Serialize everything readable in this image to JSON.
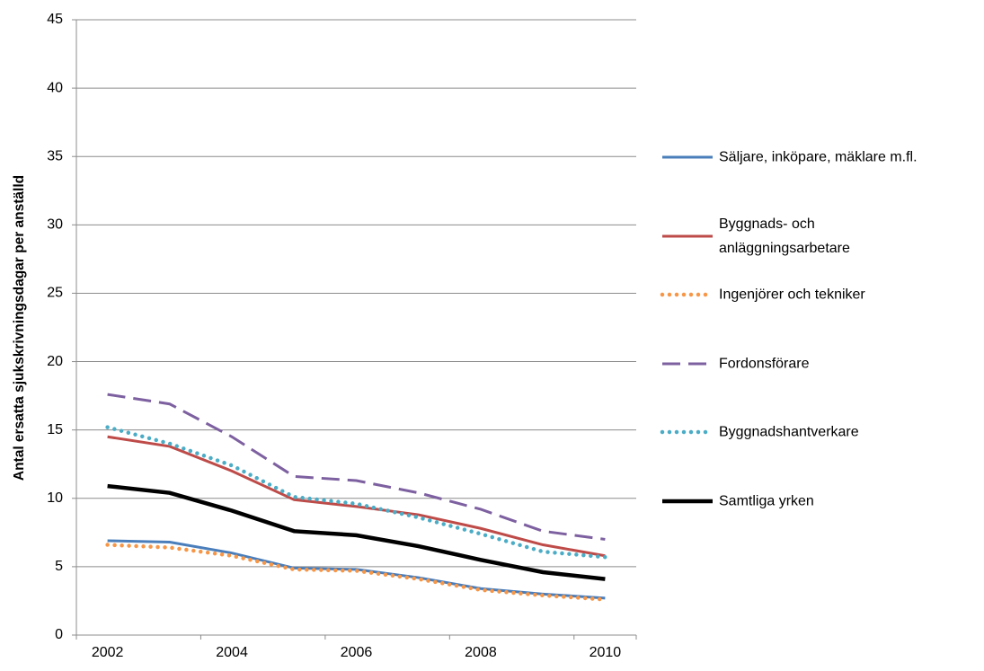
{
  "chart_data": {
    "type": "line",
    "y_label": "Antal ersatta sjukskrivningsdagar per anställd",
    "categories": [
      "2002",
      null,
      "2004",
      null,
      "2006",
      null,
      "2008",
      null,
      "2010"
    ],
    "series": [
      {
        "name": "Säljare, inköpare, mäklare m.fl.",
        "color": "#4a7ebb",
        "style": "solid",
        "values": [
          6.9,
          6.8,
          6.0,
          4.9,
          4.8,
          4.2,
          3.4,
          3.0,
          2.7
        ]
      },
      {
        "name": "Byggnads- och\nanläggningsarbetare",
        "color": "#be4b48",
        "style": "solid",
        "values": [
          14.5,
          13.8,
          12.0,
          9.9,
          9.4,
          8.8,
          7.8,
          6.6,
          5.8
        ]
      },
      {
        "name": "Ingenjörer och tekniker",
        "color": "#f79646",
        "style": "dotted",
        "values": [
          6.6,
          6.4,
          5.8,
          4.8,
          4.7,
          4.1,
          3.3,
          2.9,
          2.6
        ]
      },
      {
        "name": "Fordonsförare",
        "color": "#7d60a0",
        "style": "dashed",
        "values": [
          17.6,
          16.9,
          14.5,
          11.6,
          11.3,
          10.4,
          9.2,
          7.6,
          7.0
        ]
      },
      {
        "name": "Byggnadshantverkare",
        "color": "#4bacc6",
        "style": "dotted",
        "values": [
          15.2,
          14.0,
          12.4,
          10.1,
          9.6,
          8.6,
          7.4,
          6.1,
          5.7
        ]
      },
      {
        "name": "Samtliga yrken",
        "color": "#000000",
        "style": "thick",
        "values": [
          10.9,
          10.4,
          9.1,
          7.6,
          7.3,
          6.5,
          5.5,
          4.6,
          4.1
        ]
      }
    ],
    "ylim": [
      0,
      45
    ],
    "yticks": [
      0,
      5,
      10,
      15,
      20,
      25,
      30,
      35,
      40,
      45
    ],
    "grid": true,
    "legend": "right"
  }
}
